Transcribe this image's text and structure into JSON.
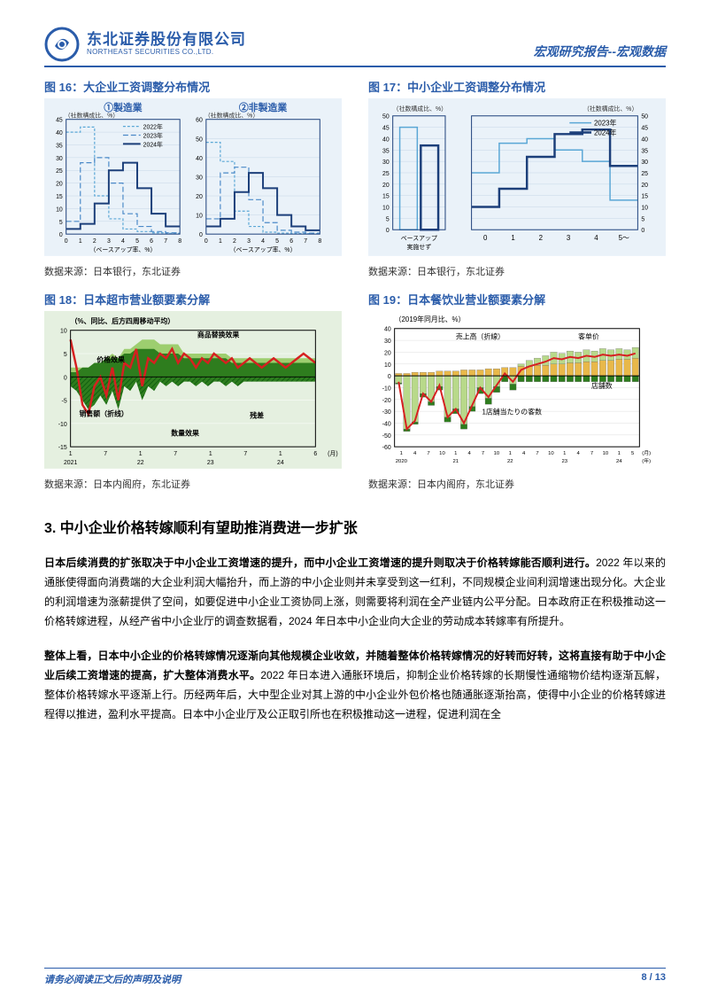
{
  "header": {
    "company_cn": "东北证券股份有限公司",
    "company_en": "NORTHEAST SECURITIES CO.,LTD.",
    "report_type": "宏观研究报告--宏观数据"
  },
  "charts": {
    "c16": {
      "title": "图 16：大企业工资调整分布情况",
      "source": "数据来源：日本银行，东北证券",
      "subtitles": [
        "①製造業",
        "②非製造業"
      ],
      "ylabel_left": "（社数構成比、%）",
      "ylabel_right": "（社数構成比、%）",
      "xlabel": "（ベースアップ率、%）",
      "legend": [
        "2022年",
        "2023年",
        "2024年"
      ],
      "legend_colors": [
        "#5aa7d6",
        "#4a89c8",
        "#1c3f7a"
      ],
      "legend_dash": [
        "3,2",
        "6,3",
        "0"
      ],
      "ylim_left": [
        0,
        45
      ],
      "ytick_step_left": 5,
      "ylim_right": [
        0,
        60
      ],
      "ytick_step_right": 10,
      "xlim": [
        0,
        8
      ],
      "xtick_step": 1,
      "panel1_2022": [
        40,
        42,
        15,
        6,
        2,
        1,
        0.5,
        0.3
      ],
      "panel1_2023": [
        5,
        28,
        30,
        20,
        8,
        3,
        1,
        0.5
      ],
      "panel1_2024": [
        2,
        4,
        12,
        25,
        28,
        18,
        8,
        3
      ],
      "panel2_2022": [
        48,
        38,
        12,
        4,
        1,
        0.5,
        0.3,
        0.2
      ],
      "panel2_2023": [
        8,
        32,
        35,
        18,
        6,
        2,
        1,
        0.5
      ],
      "panel2_2024": [
        4,
        8,
        22,
        32,
        24,
        10,
        4,
        2
      ],
      "background_color": "#eaf2f9",
      "grid_color": "#c5d6e8",
      "subtitle_color": "#2a5caa",
      "subtitle_fontsize": 12
    },
    "c17": {
      "title": "图 17：中小企业工资调整分布情况",
      "source": "数据来源：日本银行，东北证券",
      "ylabel_left": "（社数構成比、%）",
      "ylabel_right": "（社数構成比、%）",
      "xlabel_left": "ベースアップ 実施せず",
      "xlabels_right": [
        "0",
        "1",
        "2",
        "3",
        "4",
        "5～"
      ],
      "legend": [
        "2023年",
        "2024年"
      ],
      "legend_colors": [
        "#5aa7d6",
        "#1c3f7a"
      ],
      "legend_dash": [
        "0",
        "0"
      ],
      "legend_linewidth": [
        1.5,
        2.5
      ],
      "ylim": [
        0,
        50
      ],
      "ytick_step": 5,
      "left_bars": {
        "2023": 45,
        "2024": 37
      },
      "right_2023": [
        25,
        38,
        40,
        35,
        30,
        13
      ],
      "right_2024": [
        10,
        18,
        32,
        42,
        44,
        28
      ],
      "background_color": "#eaf2f9",
      "grid_color": "#c5d6e8",
      "axis_label_fontsize": 9
    },
    "c18": {
      "title": "图 18：日本超市营业额要素分解",
      "source": "数据来源：日本内阁府，东北证券",
      "subtitle": "（%、同比、后方四周移动平均）",
      "annotations": [
        "商品替换效果",
        "价格效果",
        "销售额（折线）",
        "数量效果",
        "残差"
      ],
      "ylim": [
        -15,
        10
      ],
      "ytick_step": 5,
      "xlabels": [
        "1",
        "7",
        "1",
        "7",
        "1",
        "7",
        "1",
        "6"
      ],
      "xyears": [
        "2021",
        "",
        "22",
        "",
        "23",
        "",
        "24",
        ""
      ],
      "x_right_label": "（月）",
      "series_colors": {
        "substitute": "#7fbf3f",
        "price": "#2e7d1e",
        "quantity_hatch": "#0f5f0f",
        "residual": "#b8e09a",
        "sales_line": "#d62020"
      },
      "sales_line": [
        8,
        2,
        -6,
        -8,
        -2,
        0,
        -4,
        2,
        -5,
        3,
        2,
        6,
        -2,
        4,
        3,
        5,
        4,
        6,
        3,
        5,
        4,
        2,
        4,
        3,
        5,
        4,
        3,
        4,
        2,
        3,
        4,
        3,
        2,
        3,
        4,
        3,
        2,
        3,
        4,
        5,
        4,
        3
      ],
      "price_area": [
        1,
        1,
        2,
        2,
        3,
        3,
        4,
        4,
        4,
        5,
        5,
        6,
        6,
        6,
        6,
        5,
        5,
        5,
        5,
        4,
        4,
        4,
        4,
        4,
        4,
        4,
        4,
        3,
        3,
        3,
        3,
        3,
        3,
        3,
        3,
        3,
        3,
        3,
        3,
        3,
        3,
        3
      ],
      "quantity_area": [
        -2,
        -3,
        -5,
        -7,
        -6,
        -4,
        -6,
        -3,
        -7,
        -2,
        -3,
        -1,
        -5,
        -2,
        -3,
        -1,
        -2,
        -1,
        -2,
        -1,
        -1,
        -2,
        -1,
        -2,
        -1,
        -1,
        -2,
        -1,
        -2,
        -1,
        -1,
        -1,
        -1,
        -1,
        -1,
        -1,
        -1,
        -1,
        -1,
        -1,
        -1,
        -1
      ],
      "substitute_area": [
        1,
        1,
        0,
        0,
        0,
        0,
        0,
        1,
        0,
        1,
        1,
        1,
        2,
        2,
        2,
        2,
        2,
        2,
        2,
        1,
        1,
        1,
        1,
        1,
        1,
        1,
        1,
        1,
        1,
        1,
        1,
        1,
        1,
        1,
        1,
        1,
        1,
        1,
        1,
        1,
        1,
        1
      ],
      "background_color": "#e5f0e0",
      "line_width": 2.5
    },
    "c19": {
      "title": "图 19：日本餐饮业营业额要素分解",
      "source": "数据来源：日本内阁府，东北证券",
      "subtitle": "（2019年同月比、%）",
      "annotations": [
        "売上高（折線）",
        "客单价",
        "店舗数",
        "1店舗当たりの客数"
      ],
      "ylim": [
        -60,
        40
      ],
      "ytick_step": 10,
      "xlabels": [
        "1",
        "4",
        "7",
        "10",
        "1",
        "4",
        "7",
        "10",
        "1",
        "4",
        "7",
        "10",
        "1",
        "4",
        "7",
        "10",
        "1",
        "5"
      ],
      "xyears": [
        "2020",
        "",
        "",
        "",
        "21",
        "",
        "",
        "",
        "22",
        "",
        "",
        "",
        "23",
        "",
        "",
        "",
        "24",
        ""
      ],
      "x_right_label": "（月）\n（年）",
      "series_colors": {
        "price": "#e8b84a",
        "stores": "#2e7d1e",
        "customers": "#b8d98a",
        "sales_line": "#d62020"
      },
      "sales_line": [
        -5,
        -45,
        -38,
        -15,
        -22,
        -8,
        -35,
        -28,
        -40,
        -25,
        -10,
        -18,
        -8,
        2,
        -5,
        5,
        8,
        10,
        12,
        15,
        14,
        16,
        15,
        17,
        16,
        18,
        17,
        18,
        17,
        19
      ],
      "price_bars": [
        2,
        2,
        3,
        3,
        3,
        4,
        4,
        4,
        5,
        5,
        5,
        6,
        6,
        7,
        7,
        8,
        8,
        9,
        9,
        10,
        10,
        11,
        11,
        12,
        12,
        13,
        13,
        14,
        14,
        15
      ],
      "stores_bars": [
        -1,
        -2,
        -2,
        -3,
        -3,
        -3,
        -4,
        -4,
        -4,
        -4,
        -5,
        -5,
        -5,
        -5,
        -5,
        -5,
        -5,
        -5,
        -5,
        -5,
        -5,
        -5,
        -5,
        -5,
        -5,
        -5,
        -5,
        -5,
        -5,
        -5
      ],
      "customer_bars": [
        -6,
        -45,
        -39,
        -15,
        -22,
        -9,
        -35,
        -28,
        -41,
        -26,
        -10,
        -19,
        -9,
        0,
        -7,
        2,
        5,
        6,
        8,
        10,
        9,
        10,
        9,
        10,
        9,
        10,
        9,
        9,
        8,
        9
      ],
      "background_color": "#ffffff",
      "line_width": 2
    }
  },
  "section": {
    "number": "3.",
    "heading": "中小企业价格转嫁顺利有望助推消费进一步扩张"
  },
  "paragraphs": {
    "p1_bold": "日本后续消费的扩张取决于中小企业工资增速的提升，而中小企业工资增速的提升则取决于价格转嫁能否顺利进行。",
    "p1_rest": "2022 年以来的通胀使得面向消费端的大企业利润大幅抬升，而上游的中小企业则并未享受到这一红利，不同规模企业间利润增速出现分化。大企业的利润增速为涨薪提供了空间，如要促进中小企业工资协同上涨，则需要将利润在全产业链内公平分配。日本政府正在积极推动这一价格转嫁进程，从经产省中小企业厅的调查数据看，2024 年日本中小企业向大企业的劳动成本转嫁率有所提升。",
    "p2_bold": "整体上看，日本中小企业的价格转嫁情况逐渐向其他规模企业收敛，并随着整体价格转嫁情况的好转而好转，这将直接有助于中小企业后续工资增速的提高，扩大整体消费水平。",
    "p2_rest": "2022 年日本进入通胀环境后，抑制企业价格转嫁的长期慢性通缩物价结构逐渐瓦解，整体价格转嫁水平逐渐上行。历经两年后，大中型企业对其上游的中小企业外包价格也随通胀逐渐抬高，使得中小企业的价格转嫁进程得以推进，盈利水平提高。日本中小企业厅及公正取引所也在积极推动这一进程，促进利润在全"
  },
  "footer": {
    "note": "请务必阅读正文后的声明及说明",
    "page_current": "8",
    "page_total": "13"
  }
}
